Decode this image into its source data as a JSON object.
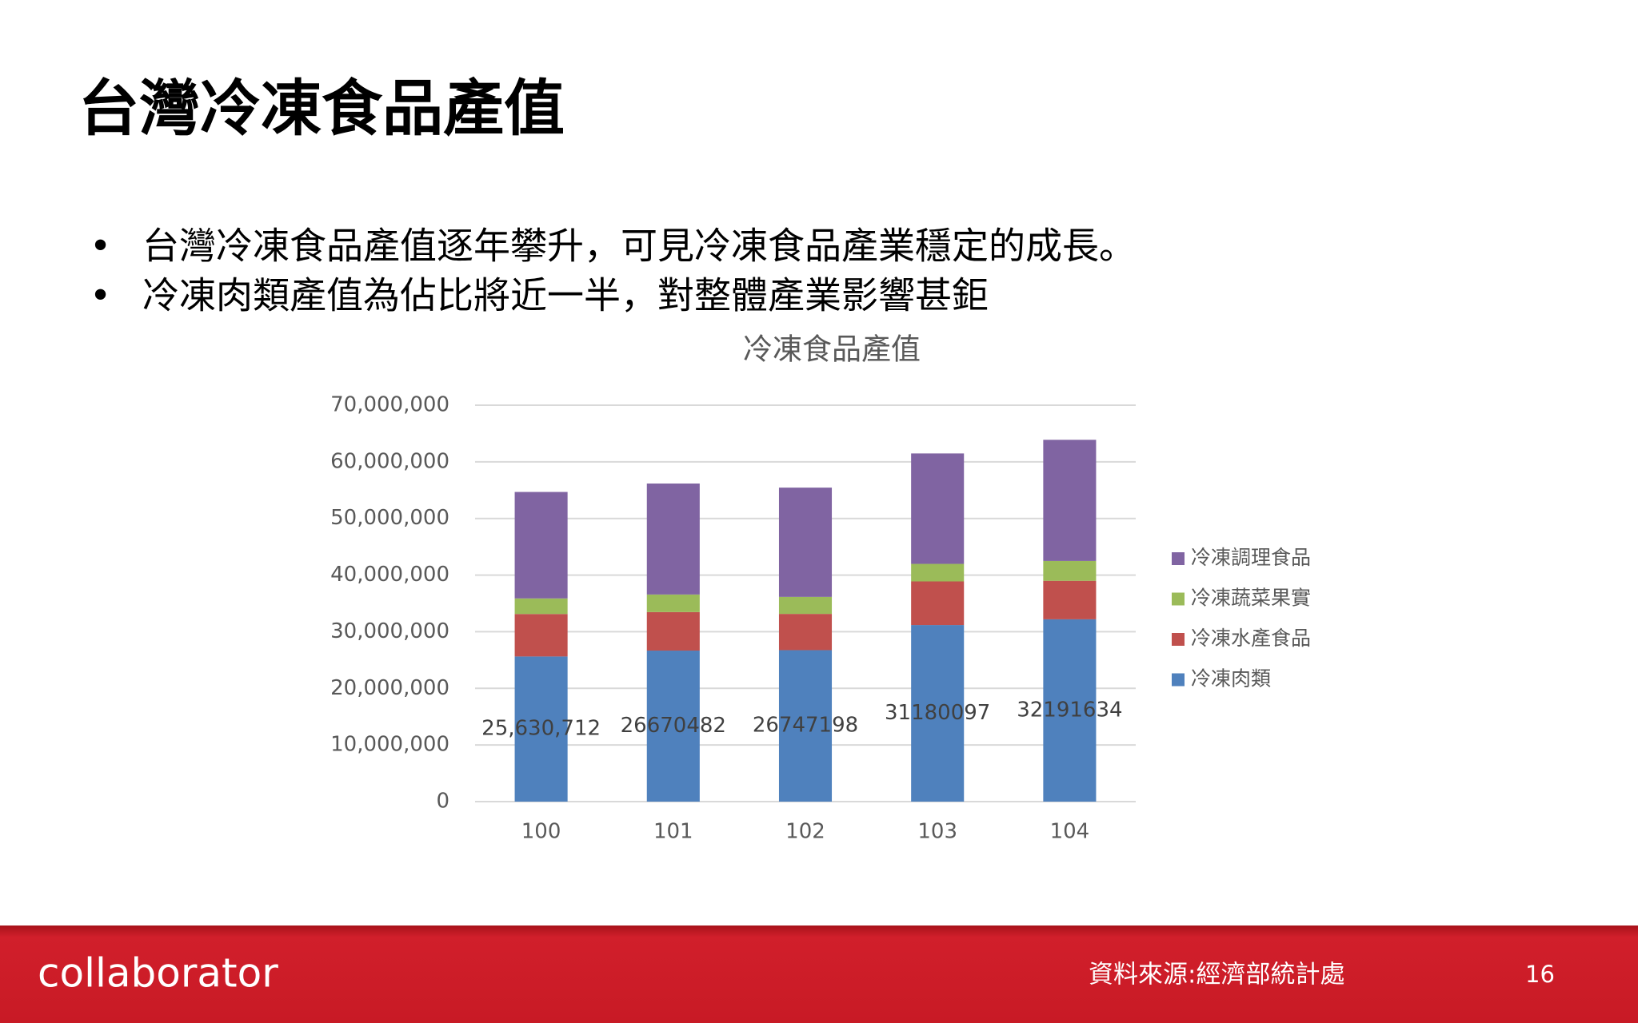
{
  "title": "台灣冷凍食品產值",
  "bullets": [
    "台灣冷凍食品產值逐年攀升，可見冷凍食品產業穩定的成長。",
    "冷凍肉類產值為佔比將近一半，對整體產業影響甚鉅"
  ],
  "chart_data": {
    "type": "stacked_bar",
    "title": "冷凍食品產值",
    "categories": [
      "100",
      "101",
      "102",
      "103",
      "104"
    ],
    "series": [
      {
        "name": "冷凍肉類",
        "color": "#4f81bd",
        "values": [
          25630712,
          26670482,
          26747198,
          31180097,
          32191634
        ],
        "value_labels": [
          "25,630,712",
          "26670482",
          "26747198",
          "31180097",
          "32191634"
        ]
      },
      {
        "name": "冷凍水產食品",
        "color": "#c0504d",
        "values": [
          7500000,
          6800000,
          6400000,
          7700000,
          6800000
        ]
      },
      {
        "name": "冷凍蔬菜果實",
        "color": "#9bbb59",
        "values": [
          2750000,
          3100000,
          3000000,
          3100000,
          3500000
        ]
      },
      {
        "name": "冷凍調理食品",
        "color": "#8064a2",
        "values": [
          18800000,
          19600000,
          19300000,
          19500000,
          21400000
        ]
      }
    ],
    "ylim": [
      0,
      70000000
    ],
    "yticks": [
      0,
      {
        "value": 10000000,
        "label": "10,000,000"
      },
      {
        "value": 20000000,
        "label": "20,000,000"
      },
      {
        "value": 30000000,
        "label": "30,000,000"
      },
      {
        "value": 40000000,
        "label": "40,000,000"
      },
      {
        "value": 50000000,
        "label": "50,000,000"
      },
      {
        "value": 60000000,
        "label": "60,000,000"
      },
      {
        "value": 70000000,
        "label": "70,000,000"
      }
    ],
    "grid": true,
    "legend": "right"
  },
  "footer": {
    "logo": "collaborator",
    "source": "資料來源:經濟部統計處",
    "page": "16"
  }
}
